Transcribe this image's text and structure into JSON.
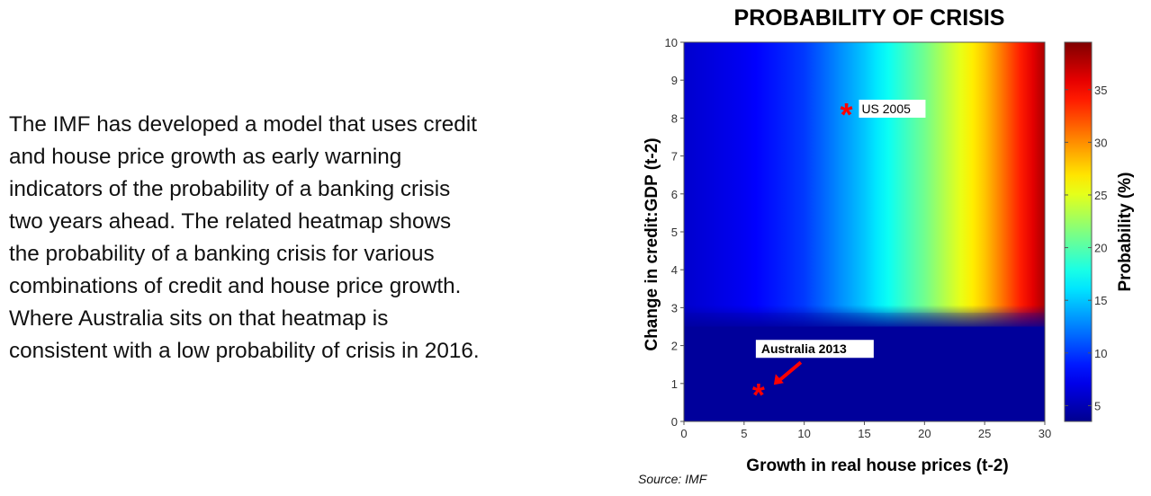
{
  "body_text": "The IMF has developed a model that uses credit\nand house price growth as early warning\nindicators of the probability of a banking crisis\ntwo years ahead.  The related heatmap shows\nthe probability of a banking crisis for various\ncombinations of credit and house price growth.\nWhere Australia sits on that heatmap is\nconsistent with a low probability of crisis in 2016.",
  "source": "Source: IMF",
  "chart_data": {
    "type": "heatmap",
    "title": "PROBABILITY OF CRISIS",
    "xlabel": "Growth in real house prices (t-2)",
    "ylabel": "Change in credit:GDP (t-2)",
    "colorbar_label": "Probability (%)",
    "xlim": [
      0,
      30
    ],
    "ylim": [
      0,
      10
    ],
    "x_ticks": [
      0,
      5,
      10,
      15,
      20,
      25,
      30
    ],
    "y_ticks": [
      0,
      1,
      2,
      3,
      4,
      5,
      6,
      7,
      8,
      9,
      10
    ],
    "colorbar_range": [
      3.5,
      39.5
    ],
    "colorbar_ticks": [
      5,
      10,
      15,
      20,
      25,
      30,
      35
    ],
    "colormap": "jet",
    "colormap_colors": [
      "#00008f",
      "#0000ff",
      "#00ffff",
      "#ffff00",
      "#ff0000",
      "#800000"
    ],
    "region_boundary_credit": 2.5,
    "regions": [
      {
        "credit_range": [
          0,
          2.5
        ],
        "probability_at_x": [
          [
            0,
            4
          ],
          [
            30,
            4
          ]
        ]
      },
      {
        "credit_range": [
          2.5,
          10
        ],
        "probability_at_x": [
          [
            0,
            6
          ],
          [
            5,
            7.5
          ],
          [
            10,
            10
          ],
          [
            15,
            15
          ],
          [
            20,
            21
          ],
          [
            25,
            28
          ],
          [
            30,
            38
          ]
        ]
      }
    ],
    "annotations": [
      {
        "label": "US 2005",
        "x": 13.5,
        "y": 8.2,
        "marker": "*",
        "marker_color": "#ff0000"
      },
      {
        "label": "Australia 2013",
        "x": 6.2,
        "y": 0.8,
        "marker": "*",
        "marker_color": "#ff0000",
        "arrow": true
      }
    ]
  }
}
